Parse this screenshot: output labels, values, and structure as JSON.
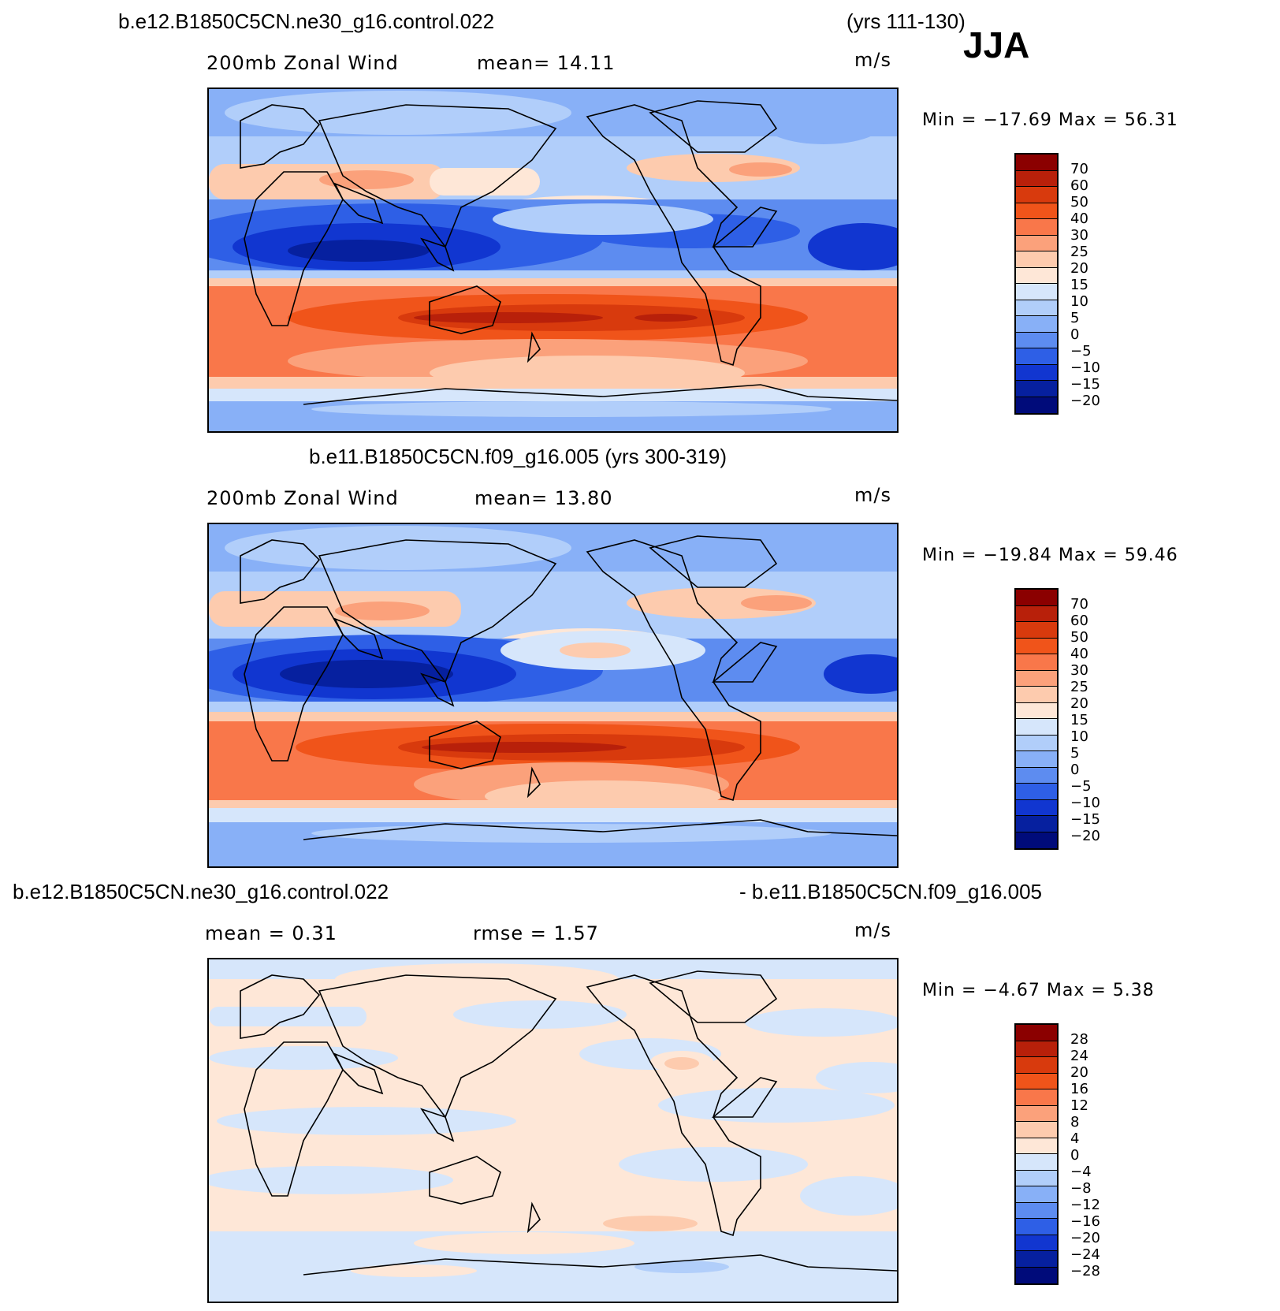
{
  "header": {
    "case1": "b.e12.B1850C5CN.ne30_g16.control.022",
    "case1_years": "(yrs 111-130)",
    "season": "JJA"
  },
  "panels": [
    {
      "id": "panel1",
      "label": "200mb Zonal Wind",
      "stat": "mean=  14.11",
      "units": "m/s",
      "minmax": "Min = −17.69 Max =  56.31",
      "scale": [
        "70",
        "60",
        "50",
        "40",
        "30",
        "25",
        "20",
        "15",
        "10",
        "5",
        "0",
        "−5",
        "−10",
        "−15",
        "−20"
      ],
      "colors": [
        "#8b0000",
        "#b8200a",
        "#d83a0d",
        "#f0541a",
        "#f9774a",
        "#fba17b",
        "#fdcbae",
        "#fee7d7",
        "#d6e6fb",
        "#b1cefa",
        "#88b0f7",
        "#5d8cf0",
        "#2e5fe6",
        "#1136d0",
        "#06209f",
        "#000b7a"
      ]
    },
    {
      "id": "panel2",
      "title": "b.e11.B1850C5CN.f09_g16.005 (yrs 300-319)",
      "label": "200mb Zonal Wind",
      "stat": "mean=  13.80",
      "units": "m/s",
      "minmax": "Min = −19.84 Max =  59.46",
      "scale": [
        "70",
        "60",
        "50",
        "40",
        "30",
        "25",
        "20",
        "15",
        "10",
        "5",
        "0",
        "−5",
        "−10",
        "−15",
        "−20"
      ],
      "colors": [
        "#8b0000",
        "#b8200a",
        "#d83a0d",
        "#f0541a",
        "#f9774a",
        "#fba17b",
        "#fdcbae",
        "#fee7d7",
        "#d6e6fb",
        "#b1cefa",
        "#88b0f7",
        "#5d8cf0",
        "#2e5fe6",
        "#1136d0",
        "#06209f",
        "#000b7a"
      ]
    },
    {
      "id": "panel3",
      "title_left": "b.e12.B1850C5CN.ne30_g16.control.022",
      "title_right": "- b.e11.B1850C5CN.f09_g16.005",
      "stat_mean": "mean =   0.31",
      "stat_rmse": "rmse =   1.57",
      "units": "m/s",
      "minmax": "Min =  −4.67 Max =   5.38",
      "scale": [
        "28",
        "24",
        "20",
        "16",
        "12",
        "8",
        "4",
        "0",
        "−4",
        "−8",
        "−12",
        "−16",
        "−20",
        "−24",
        "−28"
      ],
      "colors": [
        "#8b0000",
        "#b8200a",
        "#d83a0d",
        "#f0541a",
        "#f9774a",
        "#fba17b",
        "#fdcbae",
        "#fee7d7",
        "#d6e6fb",
        "#b1cefa",
        "#88b0f7",
        "#5d8cf0",
        "#2e5fe6",
        "#1136d0",
        "#06209f",
        "#000b7a"
      ]
    }
  ]
}
